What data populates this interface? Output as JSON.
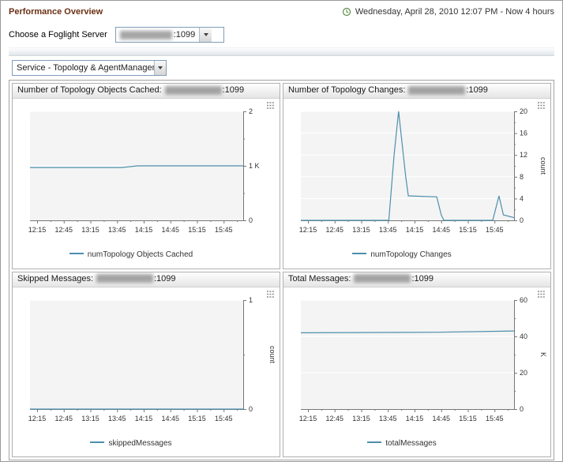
{
  "header": {
    "title": "Performance Overview",
    "time_range": "Wednesday, April 28, 2010 12:07 PM - Now 4 hours"
  },
  "server_bar": {
    "label": "Choose a Foglight Server",
    "server_port": ":1099"
  },
  "service_select": {
    "value": "Service - Topology & AgentManager"
  },
  "colors": {
    "title_text": "#6b2f12",
    "line": "#4d8fac",
    "axis": "#777777",
    "plot_bg": "#f4f4f4"
  },
  "shared_x": {
    "xlim": [
      727,
      967
    ],
    "unit": "time of day",
    "ticks": [
      {
        "v": 735,
        "label": "12:15"
      },
      {
        "v": 765,
        "label": "12:45"
      },
      {
        "v": 795,
        "label": "13:15"
      },
      {
        "v": 825,
        "label": "13:45"
      },
      {
        "v": 855,
        "label": "14:15"
      },
      {
        "v": 885,
        "label": "14:45"
      },
      {
        "v": 915,
        "label": "15:15"
      },
      {
        "v": 945,
        "label": "15:45"
      }
    ]
  },
  "chart_data": [
    {
      "type": "line",
      "title": "Number of Topology Objects Cached:",
      "server_port": ":1099",
      "legend": "numTopology Objects Cached",
      "ylabel": "",
      "ylim": [
        0,
        2
      ],
      "yticks": [
        {
          "v": 0,
          "label": "0"
        },
        {
          "v": 1,
          "label": "1 K"
        },
        {
          "v": 2,
          "label": "2"
        }
      ],
      "points": [
        [
          727,
          0.97
        ],
        [
          830,
          0.97
        ],
        [
          848,
          1.0
        ],
        [
          967,
          1.0
        ]
      ]
    },
    {
      "type": "line",
      "title": "Number of Topology Changes:",
      "server_port": ":1099",
      "legend": "numTopology Changes",
      "ylabel": "count",
      "ylim": [
        0,
        20
      ],
      "yticks": [
        {
          "v": 0,
          "label": "0"
        },
        {
          "v": 4,
          "label": "4"
        },
        {
          "v": 8,
          "label": "8"
        },
        {
          "v": 12,
          "label": "12"
        },
        {
          "v": 16,
          "label": "16"
        },
        {
          "v": 20,
          "label": "20"
        }
      ],
      "points": [
        [
          727,
          0
        ],
        [
          826,
          0
        ],
        [
          832,
          12
        ],
        [
          837,
          20
        ],
        [
          845,
          8
        ],
        [
          848,
          4.5
        ],
        [
          880,
          4.3
        ],
        [
          885,
          1
        ],
        [
          888,
          0
        ],
        [
          943,
          0
        ],
        [
          950,
          4.5
        ],
        [
          955,
          1
        ],
        [
          967,
          0.5
        ]
      ]
    },
    {
      "type": "line",
      "title": "Skipped Messages:",
      "server_port": ":1099",
      "legend": "skippedMessages",
      "ylabel": "count",
      "ylim": [
        0,
        1
      ],
      "yticks": [
        {
          "v": 0,
          "label": "0"
        },
        {
          "v": 1,
          "label": "1"
        }
      ],
      "points": [
        [
          727,
          0
        ],
        [
          967,
          0
        ]
      ]
    },
    {
      "type": "line",
      "title": "Total Messages:",
      "server_port": ":1099",
      "legend": "totalMessages",
      "ylabel": "K",
      "ylim": [
        0,
        60
      ],
      "yticks": [
        {
          "v": 0,
          "label": "0"
        },
        {
          "v": 20,
          "label": "20"
        },
        {
          "v": 40,
          "label": "40"
        },
        {
          "v": 60,
          "label": "60"
        }
      ],
      "points": [
        [
          727,
          42
        ],
        [
          880,
          42.3
        ],
        [
          967,
          43
        ]
      ]
    }
  ]
}
